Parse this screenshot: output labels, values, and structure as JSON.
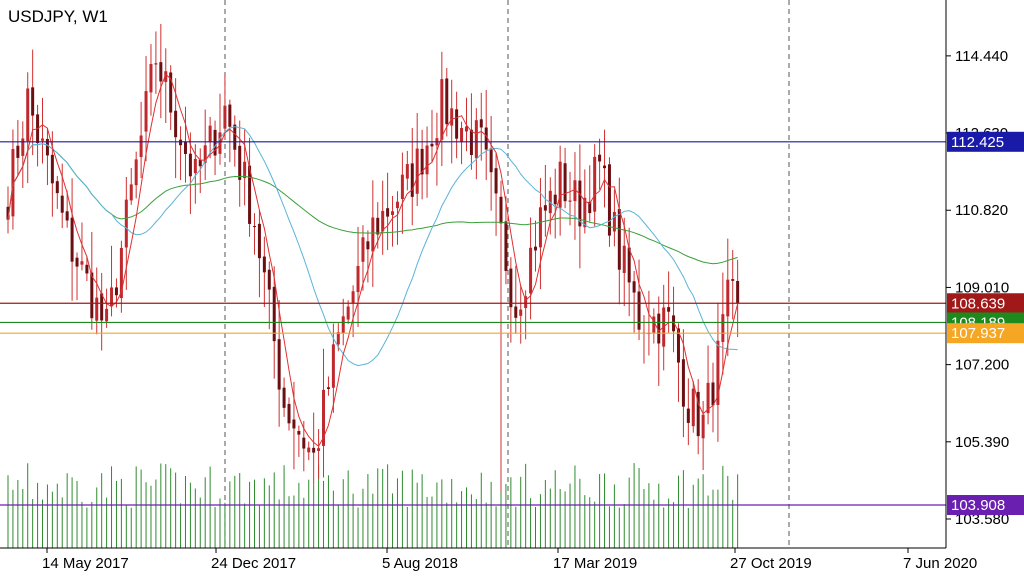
{
  "chart_data": {
    "type": "candlestick",
    "title": "USDJPY, W1",
    "ylim": [
      102.9,
      115.75
    ],
    "y_ticks": [
      114.44,
      112.63,
      110.82,
      109.01,
      107.2,
      105.39,
      103.58
    ],
    "y_tick_labels": [
      "114.440",
      "112.630",
      "110.820",
      "109.010",
      "107.200",
      "105.390",
      "103.580"
    ],
    "x_tick_labels": [
      "14 May 2017",
      "24 Dec 2017",
      "5 Aug 2018",
      "17 Mar 2019",
      "27 Oct 2019",
      "7 Jun 2020"
    ],
    "period_separators": [
      "2018",
      "2019",
      "2020"
    ],
    "grid": false,
    "colors": {
      "bull": "#c0282d",
      "bear": "#6b0f12",
      "wick": "#d03030",
      "volume": "#2e8b2e",
      "ma_fast": "#e03030",
      "ma_mid": "#5ab4d8",
      "ma_slow": "#3aa03a"
    },
    "levels": [
      {
        "value": 112.425,
        "label": "112.425",
        "color": "#1a1aa8"
      },
      {
        "value": 108.639,
        "label": "108.639",
        "color": "#a01818"
      },
      {
        "value": 108.189,
        "label": "108.189",
        "color": "#1e8a1e"
      },
      {
        "value": 107.937,
        "label": "107.937",
        "color": "#f5a623"
      },
      {
        "value": 103.908,
        "label": "103.908",
        "color": "#6a1fb0"
      }
    ],
    "key_points": [
      {
        "x": 0,
        "y": 111.2
      },
      {
        "x": 4,
        "y": 113.4
      },
      {
        "x": 12,
        "y": 110.2
      },
      {
        "x": 20,
        "y": 108.0
      },
      {
        "x": 30,
        "y": 114.4
      },
      {
        "x": 38,
        "y": 111.5
      },
      {
        "x": 44,
        "y": 113.2
      },
      {
        "x": 50,
        "y": 110.6
      },
      {
        "x": 56,
        "y": 106.3
      },
      {
        "x": 62,
        "y": 105.0
      },
      {
        "x": 67,
        "y": 107.8
      },
      {
        "x": 74,
        "y": 110.4
      },
      {
        "x": 82,
        "y": 111.6
      },
      {
        "x": 88,
        "y": 113.3
      },
      {
        "x": 96,
        "y": 112.3
      },
      {
        "x": 100,
        "y": 110.2
      },
      {
        "x": 103,
        "y": 108.6
      },
      {
        "x": 108,
        "y": 110.6
      },
      {
        "x": 112,
        "y": 111.5
      },
      {
        "x": 116,
        "y": 110.9
      },
      {
        "x": 120,
        "y": 111.8
      },
      {
        "x": 124,
        "y": 109.8
      },
      {
        "x": 128,
        "y": 108.3
      },
      {
        "x": 134,
        "y": 108.2
      },
      {
        "x": 138,
        "y": 106.3
      },
      {
        "x": 141,
        "y": 105.8
      },
      {
        "x": 144,
        "y": 107.3
      },
      {
        "x": 146,
        "y": 108.6
      },
      {
        "x": 148,
        "y": 108.64
      }
    ],
    "n_bars": 149,
    "ma_fast_period": 5,
    "ma_mid_period": 21,
    "ma_slow_period": 89
  }
}
